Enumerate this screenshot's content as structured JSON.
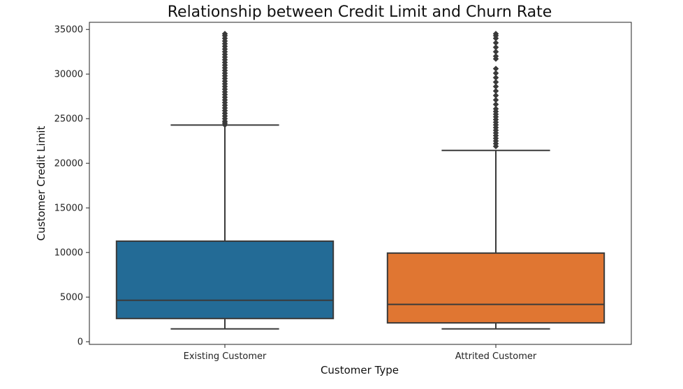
{
  "chart_data": {
    "type": "box",
    "title": "Relationship between Credit Limit and Churn Rate",
    "xlabel": "Customer Type",
    "ylabel": "Customer Credit Limit",
    "ylim": [
      -300,
      35800
    ],
    "yticks": [
      0,
      5000,
      10000,
      15000,
      20000,
      25000,
      30000,
      35000
    ],
    "ytick_labels": [
      "0",
      "5000",
      "10000",
      "15000",
      "20000",
      "25000",
      "30000",
      "35000"
    ],
    "grid": false,
    "categories": [
      "Existing Customer",
      "Attrited Customer"
    ],
    "boxes": [
      {
        "category": "Existing Customer",
        "color": "#236b96",
        "whisker_low": 1438,
        "q1": 2600,
        "median": 4640,
        "q3": 11270,
        "whisker_high": 24280,
        "outliers": [
          24300,
          24500,
          24700,
          25000,
          25300,
          25600,
          25900,
          26200,
          26500,
          26800,
          27100,
          27400,
          27700,
          28000,
          28300,
          28600,
          28900,
          29200,
          29500,
          29800,
          30100,
          30400,
          30700,
          31000,
          31300,
          31600,
          31900,
          32200,
          32500,
          32800,
          33100,
          33400,
          33700,
          34000,
          34300,
          34516
        ]
      },
      {
        "category": "Attrited Customer",
        "color": "#e07632",
        "whisker_low": 1438,
        "q1": 2110,
        "median": 4180,
        "q3": 9930,
        "whisker_high": 21440,
        "outliers": [
          21900,
          22200,
          22500,
          22800,
          23100,
          23400,
          23700,
          24000,
          24300,
          24600,
          24900,
          25200,
          25500,
          25800,
          26100,
          26600,
          27100,
          27600,
          28100,
          28600,
          29100,
          29600,
          30100,
          30600,
          31700,
          32000,
          32500,
          33000,
          33500,
          34000,
          34300,
          34516
        ]
      }
    ]
  }
}
